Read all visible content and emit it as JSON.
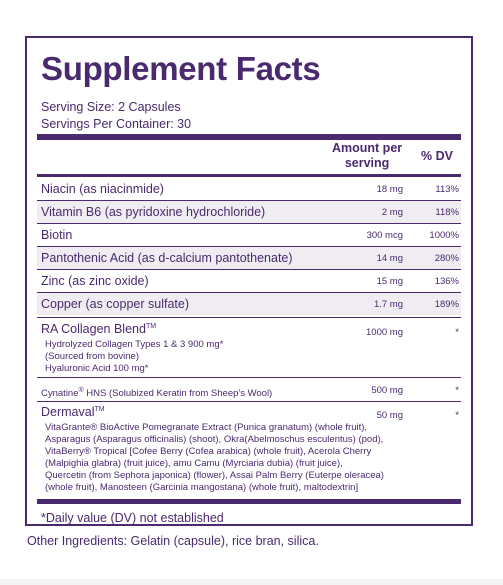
{
  "title": "Supplement Facts",
  "serving_size": "Serving Size: 2 Capsules",
  "servings_per_container": "Servings Per Container: 30",
  "header": {
    "amount_line1": "Amount per",
    "amount_line2": "serving",
    "dv": "% DV"
  },
  "nutrients": [
    {
      "name": "Niacin (as niacinmide)",
      "amount": "18 mg",
      "dv": "113%"
    },
    {
      "name": "Vitamin B6 (as pyridoxine hydrochloride)",
      "amount": "2 mg",
      "dv": "118%"
    },
    {
      "name": "Biotin",
      "amount": "300 mcg",
      "dv": "1000%"
    },
    {
      "name": "Pantothenic Acid (as d-calcium pantothenate)",
      "amount": "14 mg",
      "dv": "280%"
    },
    {
      "name": "Zinc (as zinc oxide)",
      "amount": "15 mg",
      "dv": "136%"
    },
    {
      "name": "Copper (as copper sulfate)",
      "amount": "1.7 mg",
      "dv": "189%"
    }
  ],
  "ra_blend": {
    "name": "RA Collagen Blend",
    "tm": "TM",
    "amount": "1000 mg",
    "dv": "*",
    "line1": "Hydrolyzed Collagen Types 1 & 3  900 mg*",
    "line2": "(Sourced from bovine)",
    "line3": "Hyaluronic Acid  100 mg*"
  },
  "cynatine": {
    "name": "Cynatine",
    "reg": "®",
    "rest": " HNS (Solubized Keratin from Sheep's Wool)",
    "amount": "500 mg",
    "dv": "*"
  },
  "dermaval": {
    "name": "Dermaval",
    "tm": "TM",
    "amount": "50 mg",
    "dv": "*",
    "lines": [
      "VitaGrante® BioActive Pomegranate Extract (Punica granatum) (whole fruit),",
      "Asparagus (Asparagus officinalis) (shoot), Okra(Abelmoschus esculentus) (pod),",
      "VitaBerry® Tropical [Cofee Berry (Cofea arabica) (whole fruit), Acerola Cherry",
      "(Malpighia glabra) (fruit juice), amu Camu (Myrciaria dubia) (fruit juice),",
      "Quercetin (from Sephora japonica) (flower), Assai Palm Berry (Euterpe oleracea)",
      "(whole fruit), Manosteen (Garcinia mangostana) (whole fruit), maltodextrin]"
    ]
  },
  "footnote": "*Daily value (DV) not established",
  "other_ingredients": "Other Ingredients: Gelatin (capsule), rice bran, silica."
}
